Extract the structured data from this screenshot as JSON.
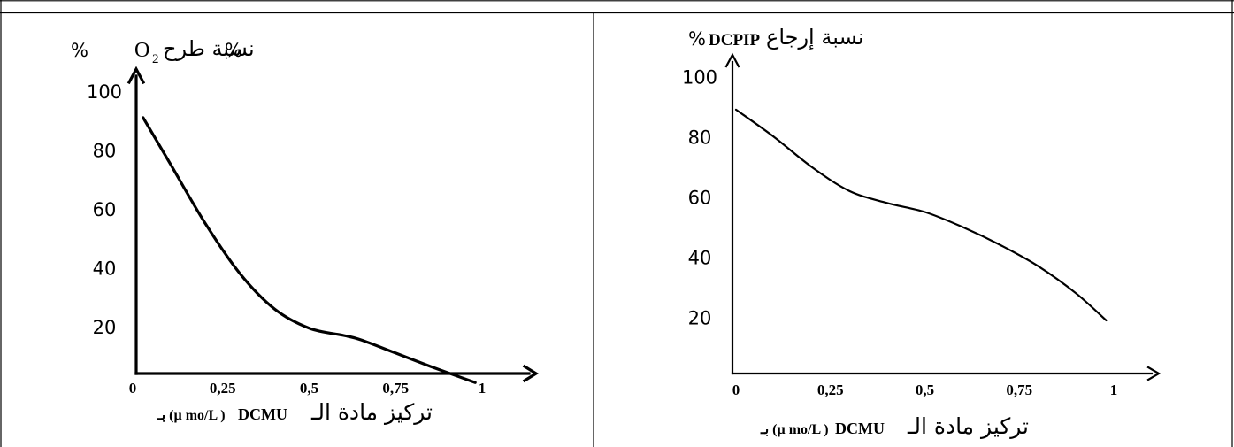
{
  "chart_data": [
    {
      "type": "line",
      "title": "",
      "ylabel": {
        "pct_left": "%",
        "formula": "O",
        "subscript": "2",
        "text_ar": "نسبة طرح",
        "pct_right": "%"
      },
      "xlabel": {
        "text_ar": "تركيز مادة الـ",
        "text_lat": "DCMU",
        "unit": "بـ (µ mo/L )"
      },
      "x_ticks": [
        "0",
        "0,25",
        "0,5",
        "0,75",
        "1"
      ],
      "y_ticks": [
        "100",
        "80",
        "60",
        "40",
        "20"
      ],
      "xlim": [
        0,
        1
      ],
      "ylim": [
        0,
        105
      ],
      "grid": false,
      "series": [
        {
          "x": [
            0.02,
            0.1,
            0.2,
            0.3,
            0.4,
            0.5,
            0.6,
            0.65,
            0.75,
            0.85,
            0.98
          ],
          "y": [
            91,
            75,
            55,
            38,
            26,
            19.5,
            17,
            15.5,
            11,
            6.5,
            1
          ]
        }
      ]
    },
    {
      "type": "line",
      "title": "",
      "ylabel": {
        "pct": "%",
        "formula": "DCPIP",
        "text_ar": "نسبة إرجاع"
      },
      "xlabel": {
        "text_ar": "تركيز مادة الـ",
        "text_lat": "DCMU",
        "unit": "بـ (µ mo/L )"
      },
      "x_ticks": [
        "0",
        "0,25",
        "0,5",
        "0,75",
        "1"
      ],
      "y_ticks": [
        "100",
        "80",
        "60",
        "40",
        "20"
      ],
      "xlim": [
        0,
        1
      ],
      "ylim": [
        0,
        105
      ],
      "grid": false,
      "series": [
        {
          "x": [
            0,
            0.1,
            0.2,
            0.3,
            0.4,
            0.5,
            0.6,
            0.7,
            0.8,
            0.9,
            0.98
          ],
          "y": [
            89,
            80,
            70,
            62,
            58,
            55,
            50,
            44,
            37,
            28,
            19
          ]
        }
      ]
    }
  ]
}
